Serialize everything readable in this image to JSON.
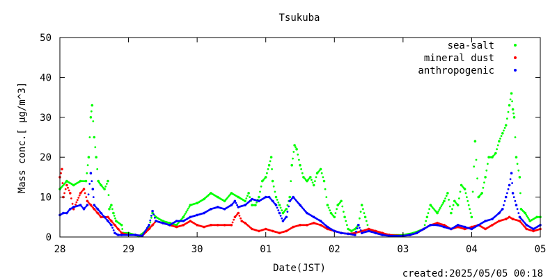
{
  "chart_data": {
    "type": "scatter",
    "title": "Tsukuba",
    "xlabel": "Date(JST)",
    "ylabel": "Mass conc.[ μg/m^3]",
    "created": "created:2025/05/05 00:18",
    "ylim": [
      0,
      50
    ],
    "yticks": [
      0,
      10,
      20,
      30,
      40,
      50
    ],
    "xlim": [
      0,
      7
    ],
    "xticks": [
      {
        "x": 0,
        "label": "28"
      },
      {
        "x": 1,
        "label": "29"
      },
      {
        "x": 2,
        "label": "30"
      },
      {
        "x": 3,
        "label": "01"
      },
      {
        "x": 4,
        "label": "02"
      },
      {
        "x": 5,
        "label": "03"
      },
      {
        "x": 6,
        "label": "04"
      },
      {
        "x": 7,
        "label": "05"
      }
    ],
    "legend_position": "top-right",
    "series": [
      {
        "name": "sea-salt",
        "color": "#00ff00",
        "points": [
          [
            0,
            12
          ],
          [
            0.1,
            14
          ],
          [
            0.2,
            13
          ],
          [
            0.3,
            14
          ],
          [
            0.38,
            14
          ],
          [
            0.42,
            20
          ],
          [
            0.45,
            30
          ],
          [
            0.47,
            33
          ],
          [
            0.5,
            25
          ],
          [
            0.53,
            20
          ],
          [
            0.56,
            14
          ],
          [
            0.6,
            13
          ],
          [
            0.65,
            12
          ],
          [
            0.7,
            14
          ],
          [
            0.72,
            7
          ],
          [
            0.75,
            8
          ],
          [
            0.78,
            6
          ],
          [
            0.82,
            4
          ],
          [
            0.9,
            3
          ],
          [
            0.92,
            1
          ],
          [
            1.0,
            1
          ],
          [
            1.1,
            0.5
          ],
          [
            1.15,
            0.2
          ],
          [
            1.25,
            1.5
          ],
          [
            1.3,
            2.5
          ],
          [
            1.35,
            6
          ],
          [
            1.4,
            5
          ],
          [
            1.5,
            4
          ],
          [
            1.6,
            3.5
          ],
          [
            1.7,
            3
          ],
          [
            1.8,
            5
          ],
          [
            1.9,
            8
          ],
          [
            2.0,
            8.5
          ],
          [
            2.1,
            9.5
          ],
          [
            2.2,
            11
          ],
          [
            2.3,
            10
          ],
          [
            2.4,
            9
          ],
          [
            2.5,
            11
          ],
          [
            2.6,
            10
          ],
          [
            2.7,
            9
          ],
          [
            2.75,
            11
          ],
          [
            2.8,
            8
          ],
          [
            2.85,
            8
          ],
          [
            2.9,
            10
          ],
          [
            2.95,
            14
          ],
          [
            3.0,
            15
          ],
          [
            3.05,
            18
          ],
          [
            3.08,
            20
          ],
          [
            3.1,
            14
          ],
          [
            3.15,
            10
          ],
          [
            3.2,
            8
          ],
          [
            3.25,
            6
          ],
          [
            3.3,
            7
          ],
          [
            3.35,
            10
          ],
          [
            3.38,
            18
          ],
          [
            3.42,
            23
          ],
          [
            3.45,
            22
          ],
          [
            3.5,
            18
          ],
          [
            3.55,
            15
          ],
          [
            3.6,
            14
          ],
          [
            3.65,
            15
          ],
          [
            3.7,
            13
          ],
          [
            3.75,
            16
          ],
          [
            3.8,
            17
          ],
          [
            3.85,
            14
          ],
          [
            3.9,
            8
          ],
          [
            3.95,
            6
          ],
          [
            4.0,
            5
          ],
          [
            4.05,
            8
          ],
          [
            4.1,
            9
          ],
          [
            4.15,
            5
          ],
          [
            4.2,
            2
          ],
          [
            4.25,
            1.5
          ],
          [
            4.3,
            2
          ],
          [
            4.35,
            3
          ],
          [
            4.4,
            8
          ],
          [
            4.45,
            5
          ],
          [
            4.5,
            2
          ],
          [
            4.6,
            1
          ],
          [
            4.8,
            0.5
          ],
          [
            5.0,
            0.5
          ],
          [
            5.15,
            1
          ],
          [
            5.3,
            2
          ],
          [
            5.35,
            5
          ],
          [
            5.4,
            8
          ],
          [
            5.5,
            6
          ],
          [
            5.6,
            9
          ],
          [
            5.65,
            11
          ],
          [
            5.7,
            6
          ],
          [
            5.75,
            9
          ],
          [
            5.8,
            8
          ],
          [
            5.85,
            13
          ],
          [
            5.9,
            12
          ],
          [
            6.0,
            5
          ],
          [
            6.05,
            24
          ],
          [
            6.1,
            10
          ],
          [
            6.15,
            11
          ],
          [
            6.2,
            15
          ],
          [
            6.25,
            20
          ],
          [
            6.3,
            20
          ],
          [
            6.35,
            21
          ],
          [
            6.4,
            24
          ],
          [
            6.45,
            26
          ],
          [
            6.5,
            28
          ],
          [
            6.55,
            33
          ],
          [
            6.58,
            36
          ],
          [
            6.6,
            32
          ],
          [
            6.62,
            30
          ],
          [
            6.65,
            20
          ],
          [
            6.7,
            15
          ],
          [
            6.72,
            7
          ],
          [
            6.78,
            6
          ],
          [
            6.85,
            4
          ],
          [
            6.95,
            5
          ],
          [
            7.0,
            5
          ]
        ]
      },
      {
        "name": "mineral dust",
        "color": "#ff0000",
        "points": [
          [
            0,
            15
          ],
          [
            0.03,
            17
          ],
          [
            0.05,
            10
          ],
          [
            0.1,
            13
          ],
          [
            0.15,
            11
          ],
          [
            0.2,
            7
          ],
          [
            0.3,
            11
          ],
          [
            0.35,
            12
          ],
          [
            0.4,
            9
          ],
          [
            0.45,
            8
          ],
          [
            0.5,
            7
          ],
          [
            0.55,
            6
          ],
          [
            0.6,
            5
          ],
          [
            0.7,
            5
          ],
          [
            0.75,
            4
          ],
          [
            0.8,
            3
          ],
          [
            0.85,
            2
          ],
          [
            0.9,
            1
          ],
          [
            1.0,
            0.5
          ],
          [
            1.1,
            0.5
          ],
          [
            1.2,
            0.3
          ],
          [
            1.3,
            2
          ],
          [
            1.35,
            3
          ],
          [
            1.4,
            4
          ],
          [
            1.5,
            3.5
          ],
          [
            1.6,
            3
          ],
          [
            1.7,
            2.5
          ],
          [
            1.8,
            3
          ],
          [
            1.9,
            4
          ],
          [
            2.0,
            3
          ],
          [
            2.1,
            2.5
          ],
          [
            2.2,
            3
          ],
          [
            2.3,
            3
          ],
          [
            2.4,
            3
          ],
          [
            2.5,
            3
          ],
          [
            2.55,
            5
          ],
          [
            2.6,
            6
          ],
          [
            2.65,
            4
          ],
          [
            2.7,
            3.5
          ],
          [
            2.8,
            2
          ],
          [
            2.9,
            1.5
          ],
          [
            3.0,
            2
          ],
          [
            3.1,
            1.5
          ],
          [
            3.2,
            1
          ],
          [
            3.3,
            1.5
          ],
          [
            3.4,
            2.5
          ],
          [
            3.5,
            3
          ],
          [
            3.6,
            3
          ],
          [
            3.7,
            3.5
          ],
          [
            3.8,
            3
          ],
          [
            3.9,
            2
          ],
          [
            4.0,
            1.5
          ],
          [
            4.1,
            1
          ],
          [
            4.2,
            0.8
          ],
          [
            4.3,
            1
          ],
          [
            4.4,
            1.5
          ],
          [
            4.5,
            2
          ],
          [
            4.6,
            1.5
          ],
          [
            4.7,
            1
          ],
          [
            4.8,
            0.5
          ],
          [
            5.0,
            0.3
          ],
          [
            5.1,
            0.5
          ],
          [
            5.2,
            1
          ],
          [
            5.3,
            2
          ],
          [
            5.4,
            3
          ],
          [
            5.5,
            3.5
          ],
          [
            5.6,
            3
          ],
          [
            5.7,
            2
          ],
          [
            5.8,
            2.5
          ],
          [
            5.9,
            2
          ],
          [
            6.0,
            2.5
          ],
          [
            6.1,
            3
          ],
          [
            6.2,
            2
          ],
          [
            6.3,
            3
          ],
          [
            6.4,
            4
          ],
          [
            6.5,
            4.5
          ],
          [
            6.55,
            5
          ],
          [
            6.6,
            4.5
          ],
          [
            6.7,
            4
          ],
          [
            6.8,
            2
          ],
          [
            6.9,
            1.5
          ],
          [
            7.0,
            2
          ]
        ]
      },
      {
        "name": "anthropogenic",
        "color": "#0000ff",
        "points": [
          [
            0,
            5.5
          ],
          [
            0.05,
            6
          ],
          [
            0.1,
            6
          ],
          [
            0.15,
            7
          ],
          [
            0.2,
            7.5
          ],
          [
            0.3,
            8
          ],
          [
            0.35,
            7
          ],
          [
            0.4,
            8
          ],
          [
            0.45,
            16
          ],
          [
            0.48,
            12
          ],
          [
            0.5,
            8
          ],
          [
            0.55,
            7
          ],
          [
            0.6,
            6
          ],
          [
            0.65,
            5
          ],
          [
            0.7,
            4
          ],
          [
            0.75,
            3
          ],
          [
            0.8,
            1
          ],
          [
            0.85,
            0.5
          ],
          [
            0.9,
            0.5
          ],
          [
            1.0,
            0.5
          ],
          [
            1.1,
            0.5
          ],
          [
            1.2,
            0.3
          ],
          [
            1.3,
            3
          ],
          [
            1.35,
            6.5
          ],
          [
            1.4,
            4
          ],
          [
            1.5,
            3.5
          ],
          [
            1.6,
            3
          ],
          [
            1.7,
            4
          ],
          [
            1.8,
            4
          ],
          [
            1.9,
            5
          ],
          [
            2.0,
            5.5
          ],
          [
            2.1,
            6
          ],
          [
            2.2,
            7
          ],
          [
            2.3,
            7.5
          ],
          [
            2.4,
            7
          ],
          [
            2.5,
            8
          ],
          [
            2.55,
            9
          ],
          [
            2.6,
            7.5
          ],
          [
            2.7,
            8
          ],
          [
            2.8,
            9.5
          ],
          [
            2.9,
            9
          ],
          [
            3.0,
            10
          ],
          [
            3.05,
            10
          ],
          [
            3.1,
            9
          ],
          [
            3.15,
            8
          ],
          [
            3.2,
            6
          ],
          [
            3.25,
            4
          ],
          [
            3.3,
            5
          ],
          [
            3.35,
            9
          ],
          [
            3.4,
            10
          ],
          [
            3.5,
            8
          ],
          [
            3.6,
            6
          ],
          [
            3.7,
            5
          ],
          [
            3.8,
            4
          ],
          [
            3.9,
            2.5
          ],
          [
            4.0,
            1.5
          ],
          [
            4.1,
            1
          ],
          [
            4.2,
            0.8
          ],
          [
            4.3,
            0.5
          ],
          [
            4.35,
            3
          ],
          [
            4.4,
            1
          ],
          [
            4.5,
            1.5
          ],
          [
            4.6,
            1
          ],
          [
            4.7,
            0.5
          ],
          [
            4.8,
            0.3
          ],
          [
            5.0,
            0.3
          ],
          [
            5.1,
            0.5
          ],
          [
            5.2,
            1
          ],
          [
            5.3,
            2
          ],
          [
            5.4,
            3
          ],
          [
            5.5,
            3
          ],
          [
            5.6,
            2.5
          ],
          [
            5.7,
            2
          ],
          [
            5.8,
            3
          ],
          [
            5.9,
            2.5
          ],
          [
            6.0,
            2
          ],
          [
            6.1,
            3
          ],
          [
            6.2,
            4
          ],
          [
            6.3,
            4.5
          ],
          [
            6.4,
            6
          ],
          [
            6.45,
            7
          ],
          [
            6.5,
            10
          ],
          [
            6.55,
            13
          ],
          [
            6.58,
            16
          ],
          [
            6.6,
            11
          ],
          [
            6.65,
            8
          ],
          [
            6.7,
            5
          ],
          [
            6.8,
            3
          ],
          [
            6.9,
            2
          ],
          [
            7.0,
            3
          ]
        ]
      }
    ]
  }
}
